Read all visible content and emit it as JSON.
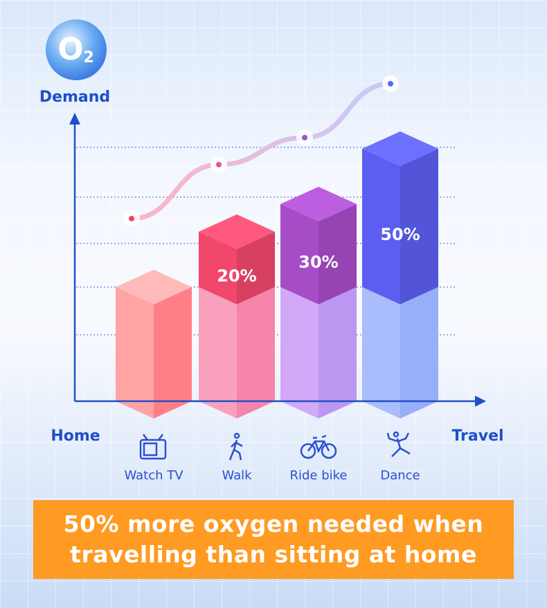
{
  "chart_data": {
    "type": "bar",
    "title": "50% more oxygen needed when travelling than sitting at home",
    "badge": {
      "main": "O",
      "sub": "2"
    },
    "y_label": "Demand",
    "x_start_label": "Home",
    "x_end_label": "Travel",
    "categories": [
      "Watch TV",
      "Walk",
      "Ride bike",
      "Dance"
    ],
    "values": [
      0,
      20,
      30,
      50
    ],
    "value_labels": [
      null,
      "20%",
      "30%",
      "50%"
    ],
    "colors": [
      "#ff8a8f",
      "#f0476b",
      "#a54cc6",
      "#5b5ef0"
    ]
  }
}
